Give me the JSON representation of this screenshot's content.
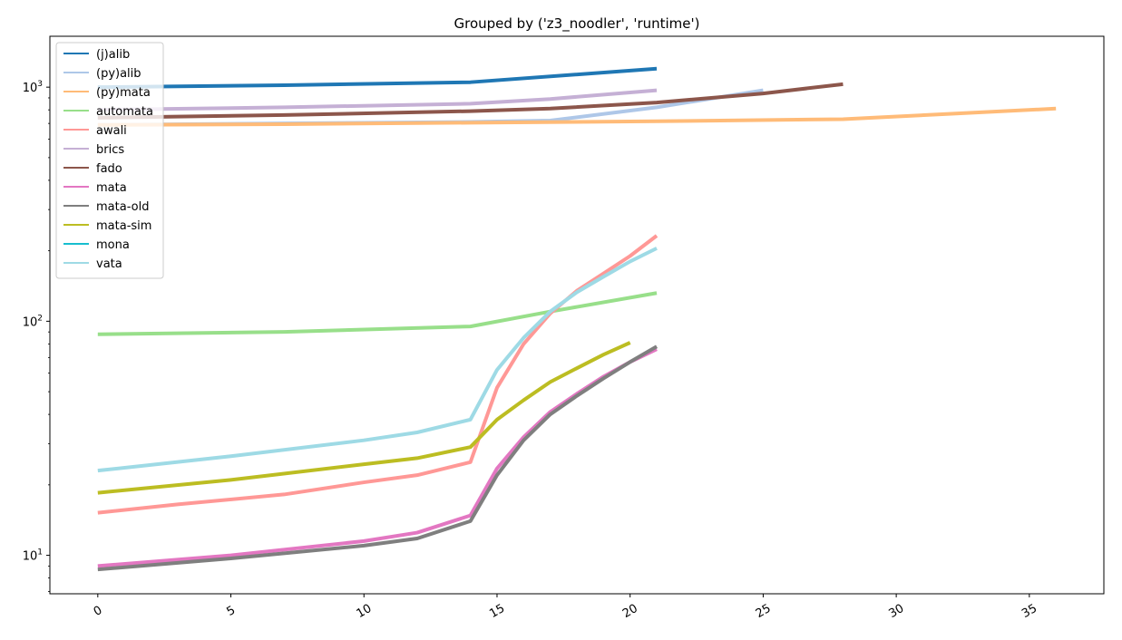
{
  "chart_data": {
    "type": "line",
    "title": "Grouped by ('z3_noodler', 'runtime')",
    "xlabel": "",
    "ylabel": "",
    "yscale": "log",
    "xlim": [
      -1.8,
      37.8
    ],
    "ylim": [
      6.85,
      1650
    ],
    "x_ticks": [
      0,
      5,
      10,
      15,
      20,
      25,
      30,
      35
    ],
    "y_ticks": [
      {
        "value": 10,
        "base": "10",
        "exp": "1"
      },
      {
        "value": 100,
        "base": "10",
        "exp": "2"
      },
      {
        "value": 1000,
        "base": "10",
        "exp": "3"
      }
    ],
    "grid": false,
    "legend_position": "top-left",
    "series": [
      {
        "name": "(j)alib",
        "color": "#1f77b4",
        "x": [
          0,
          7,
          14,
          21
        ],
        "y": [
          1000,
          1020,
          1050,
          1200
        ]
      },
      {
        "name": "(py)alib",
        "color": "#aec7e8",
        "x": [
          0,
          7,
          14,
          17,
          21,
          25
        ],
        "y": [
          690,
          700,
          710,
          720,
          820,
          970
        ]
      },
      {
        "name": "(py)mata",
        "color": "#ffbb78",
        "x": [
          0,
          7,
          14,
          21,
          28,
          36
        ],
        "y": [
          690,
          695,
          705,
          715,
          730,
          810
        ]
      },
      {
        "name": "automata",
        "color": "#98df8a",
        "x": [
          0,
          7,
          14,
          17,
          21
        ],
        "y": [
          88,
          90,
          95,
          110,
          132
        ]
      },
      {
        "name": "awali",
        "color": "#ff9896",
        "x": [
          0,
          3,
          7,
          10,
          12,
          14,
          15,
          16,
          17,
          18,
          19,
          20,
          21
        ],
        "y": [
          15.2,
          16.5,
          18.2,
          20.5,
          22,
          25,
          52,
          80,
          108,
          135,
          160,
          190,
          232
        ]
      },
      {
        "name": "brics",
        "color": "#c5b0d5",
        "x": [
          0,
          7,
          14,
          17,
          21
        ],
        "y": [
          800,
          820,
          850,
          890,
          970
        ]
      },
      {
        "name": "fado",
        "color": "#8c564b",
        "x": [
          0,
          7,
          14,
          17,
          21,
          25,
          28
        ],
        "y": [
          740,
          760,
          790,
          810,
          860,
          940,
          1030
        ]
      },
      {
        "name": "mata",
        "color": "#e377c2",
        "x": [
          0,
          5,
          10,
          12,
          14,
          15,
          16,
          17,
          18,
          19,
          20,
          21
        ],
        "y": [
          9.0,
          10.0,
          11.5,
          12.5,
          14.8,
          23.5,
          32,
          41,
          49,
          58,
          67,
          76
        ]
      },
      {
        "name": "mata-old",
        "color": "#7f7f7f",
        "x": [
          0,
          5,
          10,
          12,
          14,
          15,
          16,
          17,
          18,
          19,
          20,
          21
        ],
        "y": [
          8.7,
          9.7,
          11.0,
          11.8,
          14.0,
          22,
          31,
          40,
          48,
          57,
          67,
          78
        ]
      },
      {
        "name": "mata-sim",
        "color": "#bcbd22",
        "x": [
          0,
          5,
          10,
          12,
          14,
          15,
          16,
          17,
          18,
          19,
          20
        ],
        "y": [
          18.5,
          21,
          24.5,
          26,
          29,
          38,
          46,
          55,
          63,
          72,
          81
        ]
      },
      {
        "name": "mona",
        "color": "#17becf",
        "x": [],
        "y": []
      },
      {
        "name": "vata",
        "color": "#9edae5",
        "x": [
          0,
          5,
          10,
          12,
          14,
          15,
          16,
          17,
          18,
          19,
          20,
          21
        ],
        "y": [
          23,
          26.5,
          31,
          33.5,
          38,
          62,
          85,
          110,
          133,
          155,
          180,
          205
        ]
      }
    ]
  }
}
